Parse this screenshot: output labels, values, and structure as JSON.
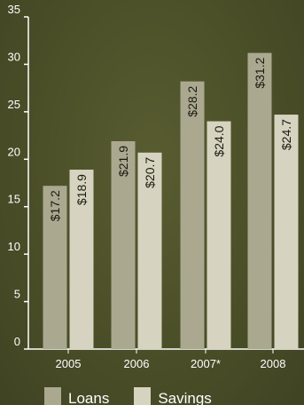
{
  "chart_data": {
    "type": "bar",
    "categories": [
      "2005",
      "2006",
      "2007*",
      "2008"
    ],
    "series": [
      {
        "name": "Loans",
        "values": [
          17.2,
          21.9,
          28.2,
          31.2
        ],
        "labels": [
          "$17.2",
          "$21.9",
          "$28.2",
          "$31.2"
        ],
        "color": "#aba890"
      },
      {
        "name": "Savings",
        "values": [
          18.9,
          20.7,
          24.0,
          24.7
        ],
        "labels": [
          "$18.9",
          "$20.7",
          "$24.0",
          "$24.7"
        ],
        "color": "#d6d4c0"
      }
    ],
    "yticks": [
      "0",
      "5",
      "10",
      "15",
      "20",
      "25",
      "30",
      "35"
    ],
    "ylim": [
      0,
      35
    ],
    "grid": false,
    "legend_position": "bottom",
    "axis_color": "#ffffff"
  }
}
